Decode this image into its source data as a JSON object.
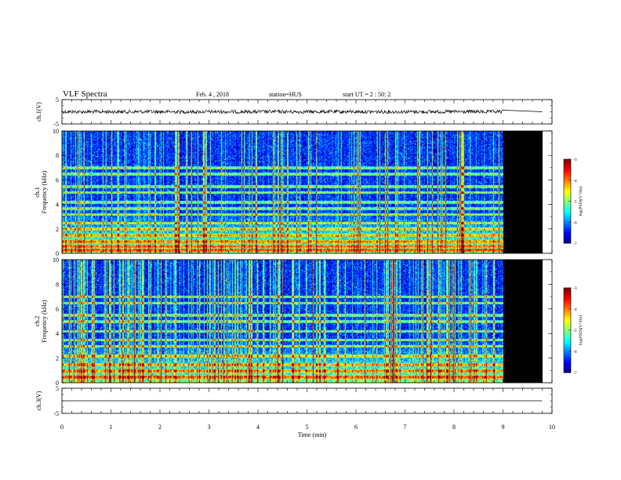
{
  "header": {
    "title": "VLF Spectra",
    "date": "Feb. 4  , 2018",
    "station": "station=HUS",
    "start": "start  UT =   2 : 50: 2"
  },
  "colors": {
    "spectrogram_background": "#00008b",
    "no_data_fill": "#000000",
    "trace": "#000000"
  },
  "chart_data": [
    {
      "type": "line",
      "panel": "ch1-waveform",
      "ylabel": "ch.1(V)",
      "ylim": [
        -5,
        5
      ],
      "yticks": [
        "5",
        "-5"
      ],
      "xlim": [
        0,
        10
      ],
      "series": [
        {
          "x": [
            0,
            9,
            9.8
          ],
          "values": [
            0,
            0,
            0
          ]
        }
      ],
      "note_data_end_min": 9.0
    },
    {
      "type": "heatmap",
      "panel": "ch1-spectrogram",
      "ylabel": "ch.1\nFrequency  (kHz)",
      "ylim": [
        0,
        10
      ],
      "yticks": [
        "0",
        "2",
        "4",
        "6",
        "8",
        "10"
      ],
      "xlim": [
        0,
        10
      ],
      "data_end_min": 9.0,
      "recording_end_min": 9.8,
      "colorbar": {
        "label": "log(PSD)(V²/Hz)",
        "range": [
          -7,
          -3
        ],
        "ticks": [
          "-3",
          "-4",
          "-5",
          "-6",
          "-7"
        ]
      },
      "bands_khz": [
        0.3,
        0.6,
        1.0,
        1.5,
        2.0,
        2.5,
        3.2,
        3.7,
        4.2,
        5.0,
        5.5,
        6.5,
        7.0
      ]
    },
    {
      "type": "heatmap",
      "panel": "ch2-spectrogram",
      "ylabel": "ch.2\nFrequency  (kHz)",
      "ylim": [
        0,
        10
      ],
      "yticks": [
        "0",
        "2",
        "4",
        "6",
        "8",
        "10"
      ],
      "xlim": [
        0,
        10
      ],
      "data_end_min": 9.0,
      "recording_end_min": 9.8,
      "colorbar": {
        "label": "log(PSD)(V²/Hz)",
        "range": [
          -7,
          -3
        ],
        "ticks": [
          "-3",
          "-4",
          "-5",
          "-6",
          "-7"
        ]
      },
      "bands_khz": [
        0.5,
        1.0,
        1.5,
        2.2,
        3.0,
        3.5,
        4.2,
        5.0,
        5.5,
        6.5,
        7.0
      ]
    },
    {
      "type": "line",
      "panel": "ch3-waveform",
      "ylabel": "ch.3(V)",
      "ylim": [
        -5,
        5
      ],
      "yticks": [
        "5",
        "-5"
      ],
      "xlim": [
        0,
        10
      ],
      "series": [
        {
          "x": [
            0,
            9.8
          ],
          "values": [
            0,
            0
          ]
        }
      ]
    }
  ],
  "xaxis": {
    "label": "Time  (min)",
    "ticks": [
      "0",
      "1",
      "2",
      "3",
      "4",
      "5",
      "6",
      "7",
      "8",
      "9",
      "10"
    ]
  }
}
